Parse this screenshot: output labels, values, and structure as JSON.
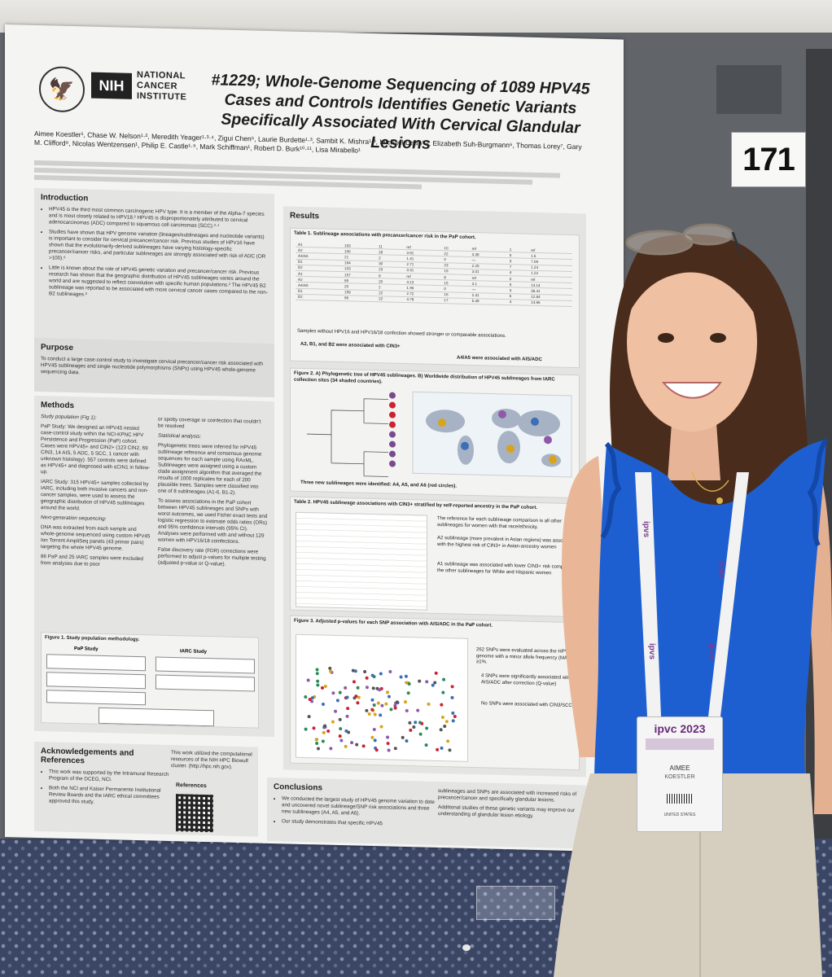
{
  "poster_number": "171",
  "poster": {
    "logo_nih": "NIH",
    "logo_institute": "NATIONAL\nCANCER\nINSTITUTE",
    "title": "#1229; Whole-Genome Sequencing of 1089 HPV45 Cases and Controls Identifies Genetic Variants Specifically Associated With Cervical Glandular Lesions",
    "authors": "Aimee Koestler¹, Chase W. Nelson¹·², Meredith Yeager¹·³·⁴, Zigui Chen⁵, Laurie Burdette¹·³, Sambit K. Mishra¹·³, Michael Dean¹·², Elizabeth Suh-Burgmann⁶, Thomas Lorey⁷, Gary M. Clifford⁸, Nicolas Wentzensen¹, Philip E. Castle¹·⁹, Mark Schiffman¹, Robert D. Burk¹⁰·¹¹, Lisa Mirabello¹",
    "sections": {
      "introduction": {
        "heading": "Introduction",
        "bullets": [
          "HPV45 is the third most common carcinogenic HPV type. It is a member of the Alpha-7 species and is most closely related to HPV18.² HPV45 is disproportionately attributed to cervical adenocarcinomas (ADC) compared to squamous cell carcinomas (SCC).³·⁴",
          "Studies have shown that HPV genome variation (lineages/sublineages and nucleotide variants) is important to consider for cervical precancer/cancer risk. Previous studies of HPV16 have shown that the evolutionarily-derived sublineages have varying histology-specific precancer/cancer risks, and particular sublineages are strongly associated with risk of ADC (OR >100).⁶",
          "Little is known about the role of HPV45 genetic variation and precancer/cancer risk. Previous research has shown that the geographic distribution of HPV45 sublineages varies around the world and are suggested to reflect coevolution with specific human populations.² The HPV45 B2 sublineage was reported to be associated with more cervical cancer cases compared to the non-B2 sublineages.²"
        ]
      },
      "purpose": {
        "heading": "Purpose",
        "text": "To conduct a large case-control study to investigate cervical precancer/cancer risk associated with HPV45 sublineages and single nucleotide polymorphisms (SNPs) using HPV45 whole-genome sequencing data."
      },
      "methods": {
        "heading": "Methods",
        "study_population_label": "Study population (Fig 1):",
        "pap_study": "PaP Study: We designed an HPV45 nested case-control study within the NCI-KPNC HPV Persistence and Progression (PaP) cohort. Cases were HPV45+ and CIN2+ (123 CIN2, 69 CIN3, 14 AIS, 5 ADC, 5 SCC, 1 cancer with unknown histology). 557 controls were defined as HPV45+ and diagnosed with ≤CIN1 in follow-up.",
        "iarc_study": "IARC Study: 315 HPV45+ samples collected by IARC, including both invasive cancers and non-cancer samples, were used to assess the geographic distribution of HPV45 sublineages around the world.",
        "ngs_label": "Next-generation sequencing:",
        "ngs_1": "DNA was extracted from each sample and whole-genome sequenced using custom HPV45 Ion Torrent AmpliSeq panels (43 primer pairs) targeting the whole HPV45 genome.",
        "ngs_2": "86 PaP and 25 IARC samples were excluded from analyses due to poor",
        "col2_top": "or spotty coverage or coinfection that couldn't be resolved",
        "stats_label": "Statistical analysis:",
        "stats_1": "Phylogenetic trees were inferred for HPV45 sublineage reference and consensus genome sequences for each sample using RAxML. Sublineages were assigned using a custom clade assignment algorithm that averaged the results of 1000 replicates for each of 200 plausible trees. Samples were classified into one of 8 sublineages (A1-6, B1-2).",
        "stats_2": "To assess associations in the PaP cohort between HPV45 sublineages and SNPs with worst outcomes, we used Fisher exact tests and logistic regression to estimate odds ratios (ORs) and 95% confidence intervals (95% CI). Analyses were performed with and without 129 women with HPV16/18 coinfections.",
        "stats_3": "False discovery rate (FDR) corrections were performed to adjust p-values for multiple testing (adjusted p-value or Q-value).",
        "figure1_caption": "Figure 1. Study population methodology.",
        "fig1_pap": "PaP Study",
        "fig1_iarc": "IARC Study"
      },
      "acknowledgements": {
        "heading": "Acknowledgements and References",
        "ack_1": "This work was supported by the Intramural Research Program of the DCEG, NCI.",
        "ack_2": "Both the NCI and Kaiser Permanente Institutional Review Boards and the IARC ethical committees approved this study.",
        "ack_3": "This work utilized the computational resources of the NIH HPC Biowulf cluster. (http://hpc.nih.gov).",
        "references_label": "References"
      },
      "results": {
        "heading": "Results",
        "table1_caption": "Table 1. Sublineage associations with precancer/cancer risk in the PaP cohort.",
        "table1_note": "Samples without HPV16 and HPV16/18 confection showed stronger or comparable associations.",
        "table1_point_1": "A2, B1, and B2 were associated with CIN3+",
        "table1_point_2": "A4/A5 were associated with AIS/ADC",
        "figure2_caption": "Figure 2. A) Phylogenetic tree of HPV45 sublineages. B) Worldwide distribution of HPV45 sublineages from IARC collection sites (34 shaded countries).",
        "figure2_note": "Three new sublineages were identified: A4, A5, and A6 (red circles).",
        "table2_caption": "Table 2. HPV45 sublineage associations with CIN3+ stratified by self-reported ancestry in the PaP cohort.",
        "table2_text_1": "The reference for each sublineage comparison is all other sublineages for women with that race/ethnicity.",
        "table2_text_2": "A2 sublineage (more prevalent in Asian regions) was associated with the highest risk of CIN3+ in Asian-ancestry women",
        "table2_text_3": "A1 sublineage was associated with lower CIN3+ risk compared to the other sublineages for White and Hispanic women",
        "figure3_caption": "Figure 3. Adjusted p-values for each SNP association with AIS/ADC in the PaP cohort.",
        "figure3_text_1": "262 SNPs were evaluated across the HPV45 genome with a minor allele frequency (MAF) ≥1%.",
        "figure3_text_2": "4 SNPs were significantly associated with AIS/ADC after correction (Q-value)",
        "figure3_text_3": "No SNPs were associated with CIN3/SCC."
      },
      "conclusions": {
        "heading": "Conclusions",
        "c1": "We conducted the largest study of HPV45 genome variation to date and uncovered novel sublineage/SNP risk associations and three new sublineages (A4, A5, and A6).",
        "c2": "Our study demonstrates that specific HPV45",
        "c3": "sublineages and SNPs are associated with increased risks of precancer/cancer and specifically glandular lesions.",
        "c4": "Additional studies of these genetic variants may improve our understanding of glandular lesion etiology."
      }
    }
  },
  "badge": {
    "event": "ipvc 2023",
    "first_name": "AIMEE",
    "last_name": "KOESTLER",
    "country": "UNITED STATES",
    "lanyard_text": "ipvs"
  },
  "colors": {
    "poster_bg": "#f4f4f2",
    "panel_bg": "#e4e4e2",
    "shirt_blue": "#1d5fd1",
    "hair_brown": "#4a2c1c",
    "pants_khaki": "#d6cfc0",
    "lanyard_purple": "#7a3d8c"
  }
}
